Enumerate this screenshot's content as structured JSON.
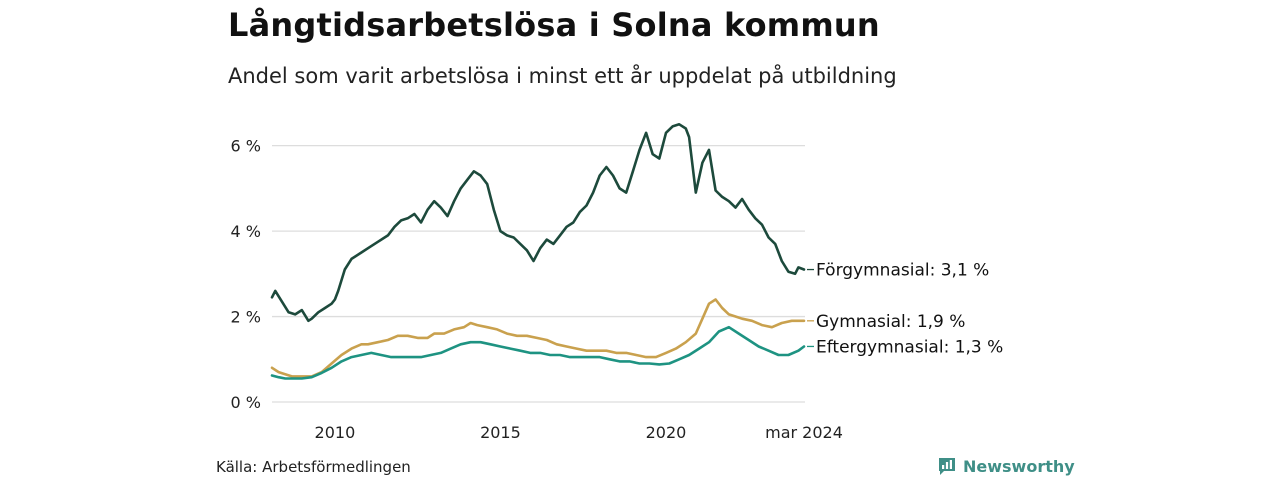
{
  "title": "Långtidsarbetslösa i Solna kommun",
  "subtitle": "Andel som varit arbetslösa i minst ett år uppdelat på utbildning",
  "source": "Källa: Arbetsförmedlingen",
  "brand": "Newsworthy",
  "colors": {
    "grid": "#dddddd",
    "brand": "#3f8f87"
  },
  "chart_data": {
    "type": "line",
    "title": "Långtidsarbetslösa i Solna kommun",
    "xlabel": "",
    "ylabel": "",
    "xlim": [
      2008.1,
      2024.2
    ],
    "ylim": [
      0,
      6.6
    ],
    "yticks": [
      0,
      2,
      4,
      6
    ],
    "ytick_labels": [
      "0 %",
      "2 %",
      "4 %",
      "6 %"
    ],
    "xticks": [
      2010,
      2015,
      2020,
      2024.17
    ],
    "xtick_labels": [
      "2010",
      "2015",
      "2020",
      "mar 2024"
    ],
    "grid": true,
    "series": [
      {
        "name": "Förgymnasial",
        "end_label": "Förgymnasial: 3,1 %",
        "color": "#1d4a3c",
        "x": [
          2008.1,
          2008.2,
          2008.4,
          2008.6,
          2008.8,
          2009.0,
          2009.2,
          2009.3,
          2009.5,
          2009.7,
          2009.9,
          2010.0,
          2010.1,
          2010.3,
          2010.5,
          2010.8,
          2011.0,
          2011.3,
          2011.6,
          2011.8,
          2012.0,
          2012.2,
          2012.4,
          2012.6,
          2012.8,
          2013.0,
          2013.2,
          2013.4,
          2013.6,
          2013.8,
          2014.0,
          2014.2,
          2014.4,
          2014.6,
          2014.8,
          2015.0,
          2015.2,
          2015.4,
          2015.6,
          2015.8,
          2016.0,
          2016.2,
          2016.4,
          2016.6,
          2016.8,
          2017.0,
          2017.2,
          2017.4,
          2017.6,
          2017.8,
          2018.0,
          2018.2,
          2018.4,
          2018.6,
          2018.8,
          2019.0,
          2019.2,
          2019.4,
          2019.6,
          2019.8,
          2020.0,
          2020.2,
          2020.4,
          2020.6,
          2020.7,
          2020.9,
          2021.1,
          2021.3,
          2021.5,
          2021.7,
          2021.9,
          2022.1,
          2022.3,
          2022.5,
          2022.7,
          2022.9,
          2023.1,
          2023.3,
          2023.5,
          2023.7,
          2023.9,
          2024.0,
          2024.17
        ],
        "y": [
          2.45,
          2.6,
          2.35,
          2.1,
          2.05,
          2.15,
          1.9,
          1.95,
          2.1,
          2.2,
          2.3,
          2.4,
          2.6,
          3.1,
          3.35,
          3.5,
          3.6,
          3.75,
          3.9,
          4.1,
          4.25,
          4.3,
          4.4,
          4.2,
          4.5,
          4.7,
          4.55,
          4.35,
          4.7,
          5.0,
          5.2,
          5.4,
          5.3,
          5.1,
          4.5,
          4.0,
          3.9,
          3.85,
          3.7,
          3.55,
          3.3,
          3.6,
          3.8,
          3.7,
          3.9,
          4.1,
          4.2,
          4.45,
          4.6,
          4.9,
          5.3,
          5.5,
          5.3,
          5.0,
          4.9,
          5.4,
          5.9,
          6.3,
          5.8,
          5.7,
          6.3,
          6.45,
          6.5,
          6.4,
          6.2,
          4.9,
          5.6,
          5.9,
          4.95,
          4.8,
          4.7,
          4.55,
          4.75,
          4.5,
          4.3,
          4.15,
          3.85,
          3.7,
          3.3,
          3.05,
          3.0,
          3.15,
          3.1
        ]
      },
      {
        "name": "Gymnasial",
        "end_label": "Gymnasial: 1,9 %",
        "color": "#c9a14e",
        "x": [
          2008.1,
          2008.3,
          2008.5,
          2008.7,
          2009.0,
          2009.3,
          2009.6,
          2009.9,
          2010.2,
          2010.5,
          2010.8,
          2011.0,
          2011.3,
          2011.6,
          2011.9,
          2012.2,
          2012.5,
          2012.8,
          2013.0,
          2013.3,
          2013.6,
          2013.9,
          2014.1,
          2014.3,
          2014.6,
          2014.9,
          2015.2,
          2015.5,
          2015.8,
          2016.1,
          2016.4,
          2016.7,
          2017.0,
          2017.3,
          2017.6,
          2017.9,
          2018.2,
          2018.5,
          2018.8,
          2019.1,
          2019.4,
          2019.7,
          2020.0,
          2020.3,
          2020.6,
          2020.9,
          2021.1,
          2021.3,
          2021.5,
          2021.7,
          2021.9,
          2022.1,
          2022.3,
          2022.6,
          2022.9,
          2023.2,
          2023.5,
          2023.8,
          2024.0,
          2024.17
        ],
        "y": [
          0.8,
          0.7,
          0.65,
          0.6,
          0.6,
          0.6,
          0.7,
          0.9,
          1.1,
          1.25,
          1.35,
          1.35,
          1.4,
          1.45,
          1.55,
          1.55,
          1.5,
          1.5,
          1.6,
          1.6,
          1.7,
          1.75,
          1.85,
          1.8,
          1.75,
          1.7,
          1.6,
          1.55,
          1.55,
          1.5,
          1.45,
          1.35,
          1.3,
          1.25,
          1.2,
          1.2,
          1.2,
          1.15,
          1.15,
          1.1,
          1.05,
          1.05,
          1.15,
          1.25,
          1.4,
          1.6,
          1.95,
          2.3,
          2.4,
          2.2,
          2.05,
          2.0,
          1.95,
          1.9,
          1.8,
          1.75,
          1.85,
          1.9,
          1.9,
          1.9
        ]
      },
      {
        "name": "Eftergymnasial",
        "end_label": "Eftergymnasial: 1,3 %",
        "color": "#1e9382",
        "x": [
          2008.1,
          2008.3,
          2008.5,
          2008.7,
          2009.0,
          2009.3,
          2009.6,
          2009.9,
          2010.2,
          2010.5,
          2010.8,
          2011.1,
          2011.4,
          2011.7,
          2012.0,
          2012.3,
          2012.6,
          2012.9,
          2013.2,
          2013.5,
          2013.8,
          2014.1,
          2014.4,
          2014.7,
          2015.0,
          2015.3,
          2015.6,
          2015.9,
          2016.2,
          2016.5,
          2016.8,
          2017.1,
          2017.4,
          2017.7,
          2018.0,
          2018.3,
          2018.6,
          2018.9,
          2019.2,
          2019.5,
          2019.8,
          2020.1,
          2020.4,
          2020.7,
          2021.0,
          2021.3,
          2021.6,
          2021.9,
          2022.2,
          2022.5,
          2022.8,
          2023.1,
          2023.4,
          2023.7,
          2024.0,
          2024.17
        ],
        "y": [
          0.62,
          0.58,
          0.55,
          0.55,
          0.55,
          0.58,
          0.68,
          0.8,
          0.95,
          1.05,
          1.1,
          1.15,
          1.1,
          1.05,
          1.05,
          1.05,
          1.05,
          1.1,
          1.15,
          1.25,
          1.35,
          1.4,
          1.4,
          1.35,
          1.3,
          1.25,
          1.2,
          1.15,
          1.15,
          1.1,
          1.1,
          1.05,
          1.05,
          1.05,
          1.05,
          1.0,
          0.95,
          0.95,
          0.9,
          0.9,
          0.88,
          0.9,
          1.0,
          1.1,
          1.25,
          1.4,
          1.65,
          1.75,
          1.6,
          1.45,
          1.3,
          1.2,
          1.1,
          1.1,
          1.2,
          1.3
        ]
      }
    ]
  }
}
